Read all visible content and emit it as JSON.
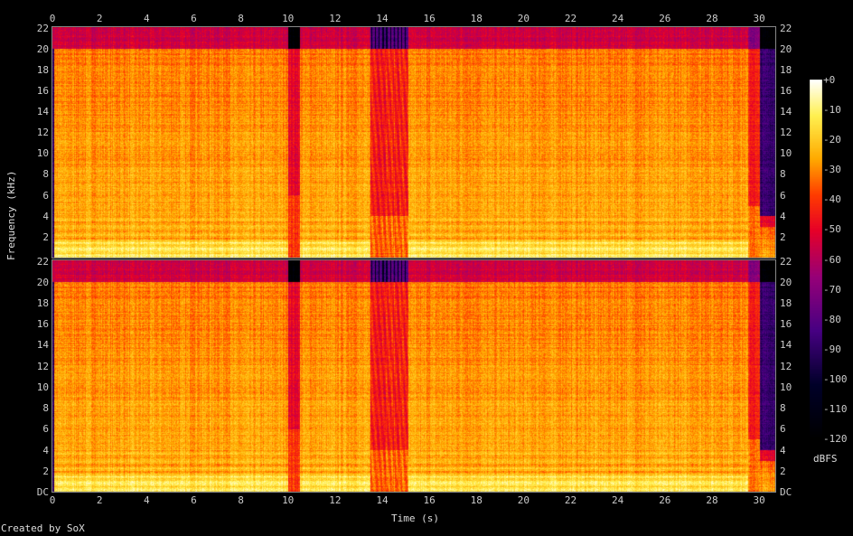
{
  "chart_data": {
    "type": "heatmap",
    "subtype": "spectrogram",
    "xlabel": "Time (s)",
    "ylabel": "Frequency (kHz)",
    "xlim": [
      0,
      30.7
    ],
    "ylim": [
      0,
      22.05
    ],
    "x_ticks": [
      "0",
      "2",
      "4",
      "6",
      "8",
      "10",
      "12",
      "14",
      "16",
      "18",
      "20",
      "22",
      "24",
      "26",
      "28",
      "30"
    ],
    "y_ticks": [
      "DC",
      "2",
      "4",
      "6",
      "8",
      "10",
      "12",
      "14",
      "16",
      "18",
      "20",
      "22"
    ],
    "channels": 2,
    "colorbar": {
      "label": "dBFS",
      "range": [
        -120,
        0
      ],
      "ticks": [
        "+0",
        "-10",
        "-20",
        "-30",
        "-40",
        "-50",
        "-60",
        "-70",
        "-80",
        "-90",
        "-100",
        "-110",
        "-120"
      ]
    },
    "features": [
      {
        "t": [
          0,
          30.0
        ],
        "f": [
          0,
          20
        ],
        "level_dbfs": -25
      },
      {
        "t": [
          0,
          30.0
        ],
        "f": [
          20,
          22.05
        ],
        "level_dbfs": -55
      },
      {
        "t": [
          10.0,
          10.5
        ],
        "f": [
          0,
          20
        ],
        "level_dbfs": -50
      },
      {
        "t": [
          10.0,
          10.5
        ],
        "f": [
          20,
          22.05
        ],
        "level_dbfs": -120
      },
      {
        "t": [
          13.5,
          15.1
        ],
        "f": [
          0,
          22.05
        ],
        "level_dbfs": -45
      },
      {
        "t": [
          30.0,
          30.7
        ],
        "f": [
          4,
          20
        ],
        "level_dbfs": -88
      }
    ]
  },
  "footer": {
    "credit": "Created by SoX"
  }
}
